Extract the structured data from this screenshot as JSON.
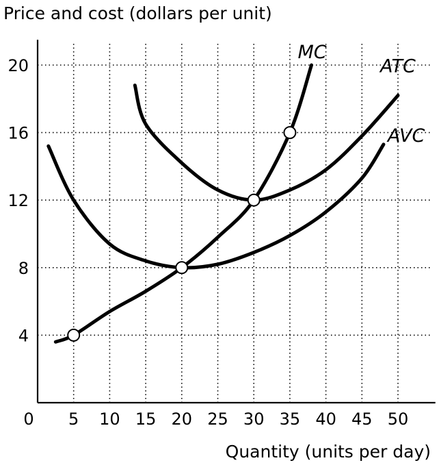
{
  "chart_data": {
    "type": "line",
    "ylabel": "Price and cost (dollars per unit)",
    "xlabel": "Quantity (units per day)",
    "xlim": [
      0,
      55
    ],
    "ylim": [
      0,
      21.5
    ],
    "x_ticks": [
      0,
      5,
      10,
      15,
      20,
      25,
      30,
      35,
      40,
      45,
      50
    ],
    "y_ticks": [
      4,
      8,
      12,
      16,
      20
    ],
    "grid": true,
    "series": [
      {
        "name": "MC",
        "x": [
          2.5,
          5,
          10,
          15,
          20,
          25,
          30,
          35,
          38
        ],
        "y": [
          3.6,
          4,
          5.4,
          6.6,
          8,
          9.8,
          12,
          16,
          20
        ]
      },
      {
        "name": "ATC",
        "x": [
          13.5,
          15,
          20,
          25,
          30,
          35,
          40,
          45,
          50
        ],
        "y": [
          18.8,
          16.5,
          14.2,
          12.6,
          12,
          12.6,
          13.8,
          15.8,
          18.2
        ]
      },
      {
        "name": "AVC",
        "x": [
          1.5,
          5,
          10,
          15,
          20,
          25,
          30,
          35,
          40,
          45,
          48
        ],
        "y": [
          15.2,
          12,
          9.4,
          8.4,
          8,
          8.2,
          8.9,
          9.9,
          11.3,
          13.3,
          15.3
        ]
      }
    ],
    "marked_points": [
      {
        "x": 5,
        "y": 4
      },
      {
        "x": 20,
        "y": 8
      },
      {
        "x": 30,
        "y": 12
      },
      {
        "x": 35,
        "y": 16
      }
    ]
  }
}
